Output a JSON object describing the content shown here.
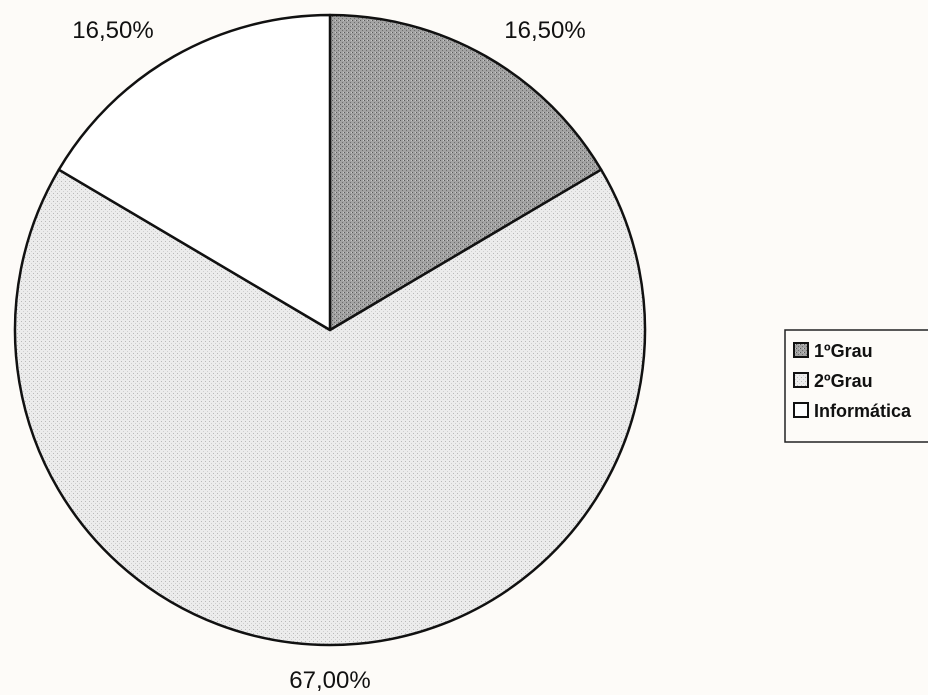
{
  "chart_data": {
    "type": "pie",
    "start_angle_deg": 0,
    "direction": "clockwise",
    "slices": [
      {
        "label": "1ºGrau",
        "value": 16.5,
        "display": "16,50%",
        "fill": "#9a9a9a",
        "pattern": "dark-dots"
      },
      {
        "label": "2ºGrau",
        "value": 67.0,
        "display": "67,00%",
        "fill": "#e6e6e6",
        "pattern": "light-dots"
      },
      {
        "label": "Informática",
        "value": 16.5,
        "display": "16,50%",
        "fill": "#ffffff",
        "pattern": "none"
      }
    ],
    "legend": {
      "position": "right",
      "items": [
        "1ºGrau",
        "2ºGrau",
        "Informática"
      ]
    }
  }
}
